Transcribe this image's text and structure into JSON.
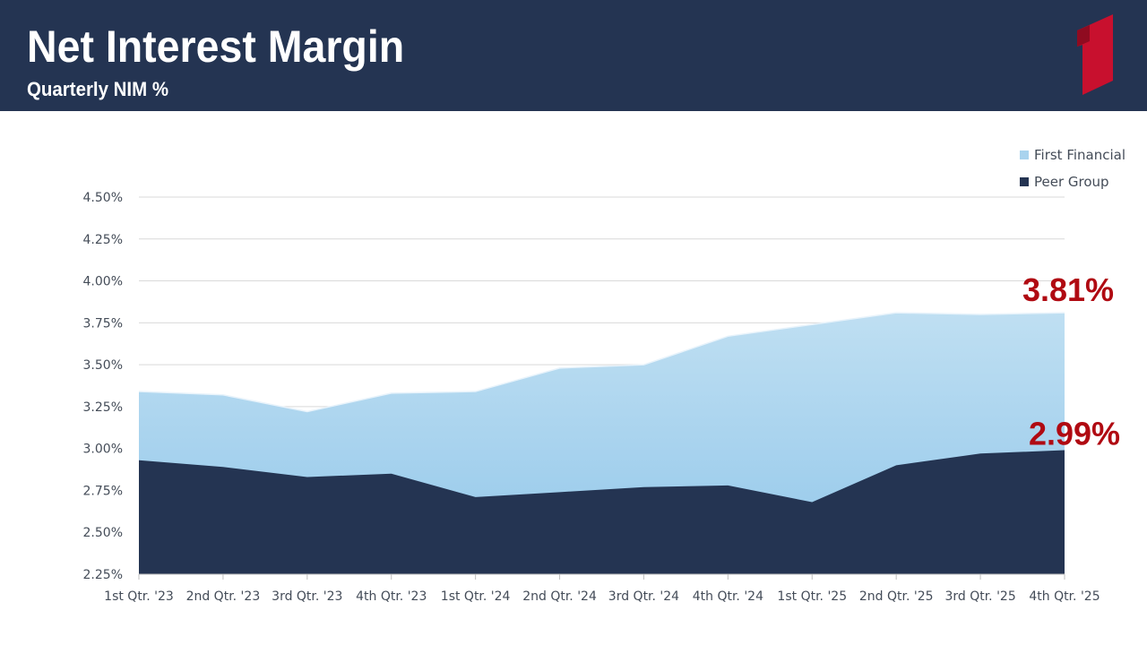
{
  "header": {
    "title": "Net Interest Margin",
    "subtitle": "Quarterly NIM %",
    "logo_icon": "red-flag-1-logo-icon"
  },
  "colors": {
    "header_bg": "#243452",
    "first_financial": "#a9d3ee",
    "peer_group": "#243452",
    "callout": "#b00a12",
    "logo": "#c8102e"
  },
  "chart_data": {
    "type": "area",
    "title": "",
    "xlabel": "",
    "ylabel": "",
    "categories": [
      "1st Qtr. '23",
      "2nd Qtr. '23",
      "3rd Qtr. '23",
      "4th Qtr. '23",
      "1st Qtr. '24",
      "2nd Qtr. '24",
      "3rd Qtr. '24",
      "4th Qtr. '24",
      "1st Qtr. '25",
      "2nd Qtr. '25",
      "3rd Qtr. '25",
      "4th Qtr. '25"
    ],
    "series": [
      {
        "name": "First Financial",
        "values": [
          3.34,
          3.32,
          3.22,
          3.33,
          3.34,
          3.48,
          3.5,
          3.67,
          3.74,
          3.81,
          3.8,
          3.81
        ]
      },
      {
        "name": "Peer Group",
        "values": [
          2.93,
          2.89,
          2.83,
          2.85,
          2.71,
          2.74,
          2.77,
          2.78,
          2.68,
          2.9,
          2.97,
          2.99
        ]
      }
    ],
    "ylim": [
      2.25,
      4.5
    ],
    "yticks": [
      2.25,
      2.5,
      2.75,
      3.0,
      3.25,
      3.5,
      3.75,
      4.0,
      4.25,
      4.5
    ],
    "ytick_labels": [
      "2.25%",
      "2.50%",
      "2.75%",
      "3.00%",
      "3.25%",
      "3.50%",
      "3.75%",
      "4.00%",
      "4.25%",
      "4.50%"
    ],
    "grid": true,
    "legend": {
      "placement": "top-right",
      "entries": [
        "First Financial",
        "Peer Group"
      ]
    },
    "annotations": [
      {
        "text": "3.81%",
        "series": "First Financial",
        "category": "4th Qtr. '25"
      },
      {
        "text": "2.99%",
        "series": "Peer Group",
        "category": "4th Qtr. '25"
      }
    ]
  }
}
